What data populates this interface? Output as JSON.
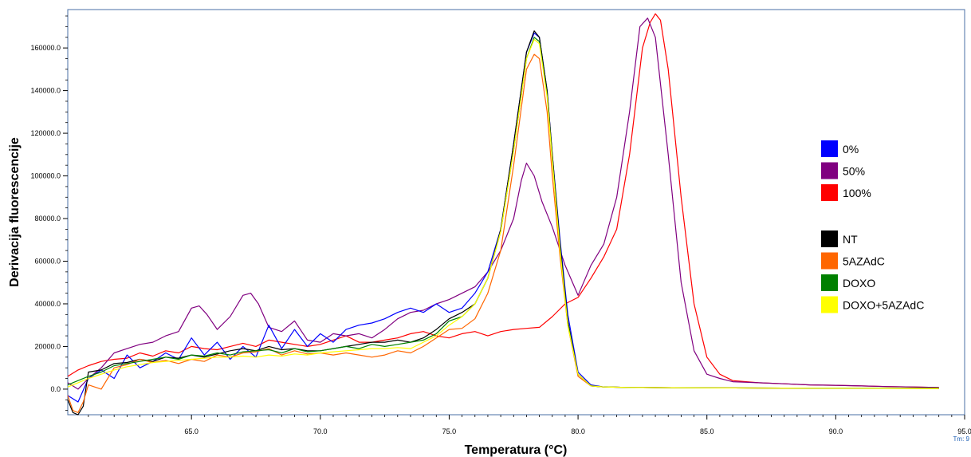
{
  "chart_data": {
    "type": "line",
    "title": "",
    "xlabel": "Temperatura (°C)",
    "ylabel": "Derivacija fluorescencije",
    "xlim": [
      60.2,
      95.0
    ],
    "ylim": [
      -12000,
      178000
    ],
    "x_ticks": [
      65.0,
      70.0,
      75.0,
      80.0,
      85.0,
      90.0,
      95.0
    ],
    "x_tick_labels": [
      "65.0",
      "70.0",
      "75.0",
      "80.0",
      "85.0",
      "90.0",
      "95.0"
    ],
    "y_ticks": [
      0,
      20000,
      40000,
      60000,
      80000,
      100000,
      120000,
      140000,
      160000
    ],
    "y_tick_labels": [
      "0.0",
      "20000.0",
      "40000.0",
      "60000.0",
      "80000.0",
      "100000.0",
      "120000.0",
      "140000.0",
      "160000.0"
    ],
    "corner_label": "Tm: 9",
    "grid": false,
    "legend_position": "right",
    "legend_groups": [
      [
        {
          "name": "0%",
          "color": "#0000ff"
        },
        {
          "name": "50%",
          "color": "#800080"
        },
        {
          "name": "100%",
          "color": "#ff0000"
        }
      ],
      [
        {
          "name": "NT",
          "color": "#000000"
        },
        {
          "name": "5AZAdC",
          "color": "#ff6600"
        },
        {
          "name": "DOXO",
          "color": "#008000"
        },
        {
          "name": "DOXO+5AZAdC",
          "color": "#ffff00"
        }
      ]
    ],
    "series": [
      {
        "name": "100%",
        "color": "#ff0000",
        "x": [
          60.2,
          60.6,
          61.0,
          61.5,
          62.0,
          62.5,
          63.0,
          63.5,
          64.0,
          64.5,
          65.0,
          65.5,
          66.0,
          66.5,
          67.0,
          67.5,
          68.0,
          68.5,
          69.0,
          69.5,
          70.0,
          70.5,
          71.0,
          71.5,
          72.0,
          72.5,
          73.0,
          73.5,
          74.0,
          74.5,
          75.0,
          75.5,
          76.0,
          76.5,
          77.0,
          77.5,
          78.0,
          78.5,
          79.0,
          79.5,
          80.0,
          80.5,
          81.0,
          81.5,
          82.0,
          82.5,
          82.8,
          83.0,
          83.2,
          83.5,
          84.0,
          84.5,
          85.0,
          85.5,
          86.0,
          87.0,
          88.0,
          89.0,
          90.0,
          91.0,
          92.0,
          93.0,
          94.0
        ],
        "y": [
          6000,
          9000,
          11000,
          13000,
          14000,
          14500,
          17000,
          15500,
          18000,
          17000,
          20000,
          19000,
          18500,
          20000,
          21500,
          20000,
          23000,
          22000,
          21000,
          20000,
          21000,
          23000,
          25000,
          22000,
          22000,
          23000,
          24000,
          26000,
          27000,
          25000,
          24000,
          26000,
          27000,
          25000,
          27000,
          28000,
          28500,
          29000,
          34000,
          40000,
          43000,
          52000,
          62000,
          75000,
          110000,
          160000,
          172000,
          176000,
          173000,
          150000,
          90000,
          40000,
          15000,
          7000,
          4000,
          3000,
          2500,
          2000,
          1800,
          1500,
          1200,
          1000,
          800
        ]
      },
      {
        "name": "50%",
        "color": "#800080",
        "x": [
          60.2,
          60.6,
          61.0,
          61.5,
          62.0,
          62.5,
          63.0,
          63.5,
          64.0,
          64.5,
          65.0,
          65.3,
          65.6,
          66.0,
          66.5,
          67.0,
          67.3,
          67.6,
          68.0,
          68.5,
          69.0,
          69.5,
          70.0,
          70.5,
          71.0,
          71.5,
          72.0,
          72.5,
          73.0,
          73.5,
          74.0,
          74.5,
          75.0,
          75.5,
          76.0,
          76.5,
          77.0,
          77.5,
          77.8,
          78.0,
          78.3,
          78.6,
          79.0,
          79.5,
          80.0,
          80.5,
          81.0,
          81.5,
          82.0,
          82.4,
          82.7,
          83.0,
          83.5,
          84.0,
          84.5,
          85.0,
          85.5,
          86.0,
          87.0,
          88.0,
          89.0,
          90.0,
          91.0,
          92.0,
          93.0,
          94.0
        ],
        "y": [
          3000,
          0,
          5000,
          10000,
          17000,
          19000,
          21000,
          22000,
          25000,
          27000,
          38000,
          39000,
          35000,
          28000,
          34000,
          44000,
          45000,
          40000,
          29000,
          27000,
          32000,
          23000,
          22000,
          26000,
          25000,
          26000,
          24000,
          28000,
          33000,
          36000,
          37000,
          40000,
          42000,
          45000,
          48000,
          55000,
          65000,
          80000,
          98000,
          106000,
          100000,
          88000,
          76000,
          58000,
          44000,
          58000,
          68000,
          90000,
          130000,
          170000,
          174000,
          165000,
          110000,
          50000,
          18000,
          7000,
          5000,
          3500,
          3000,
          2500,
          2000,
          1800,
          1500,
          1200,
          1000,
          800
        ]
      },
      {
        "name": "0%",
        "color": "#0000ff",
        "x": [
          60.2,
          60.6,
          61.0,
          61.5,
          62.0,
          62.5,
          63.0,
          63.5,
          64.0,
          64.5,
          65.0,
          65.5,
          66.0,
          66.5,
          67.0,
          67.5,
          68.0,
          68.5,
          69.0,
          69.5,
          70.0,
          70.5,
          71.0,
          71.5,
          72.0,
          72.5,
          73.0,
          73.5,
          74.0,
          74.5,
          75.0,
          75.5,
          76.0,
          76.5,
          77.0,
          77.5,
          78.0,
          78.3,
          78.5,
          78.8,
          79.0,
          79.3,
          79.6,
          80.0,
          80.5,
          81.0,
          82.0,
          83.0,
          85.0,
          88.0,
          91.0,
          94.0
        ],
        "y": [
          -3000,
          -6000,
          5000,
          9000,
          5000,
          16000,
          10000,
          13000,
          17000,
          14000,
          24000,
          16000,
          22000,
          14000,
          20000,
          15000,
          30000,
          19000,
          28000,
          20000,
          26000,
          22000,
          28000,
          30000,
          31000,
          33000,
          36000,
          38000,
          36000,
          40000,
          36000,
          38000,
          45000,
          55000,
          75000,
          115000,
          158000,
          167000,
          165000,
          140000,
          110000,
          70000,
          35000,
          8000,
          2000,
          1000,
          800,
          700,
          600,
          500,
          500,
          500
        ]
      },
      {
        "name": "NT",
        "color": "#000000",
        "x": [
          60.2,
          60.4,
          60.6,
          60.8,
          61.0,
          61.5,
          62.0,
          62.5,
          63.0,
          63.5,
          64.0,
          64.5,
          65.0,
          65.5,
          66.0,
          66.5,
          67.0,
          67.5,
          68.0,
          68.5,
          69.0,
          69.5,
          70.0,
          70.5,
          71.0,
          71.5,
          72.0,
          72.5,
          73.0,
          73.5,
          74.0,
          74.5,
          75.0,
          75.5,
          76.0,
          76.5,
          77.0,
          77.5,
          78.0,
          78.3,
          78.5,
          78.8,
          79.0,
          79.3,
          79.6,
          80.0,
          80.5,
          81.0,
          82.0,
          83.0,
          85.0,
          88.0,
          91.0,
          94.0
        ],
        "y": [
          -5000,
          -11000,
          -12000,
          -8000,
          8000,
          9000,
          12000,
          12500,
          14000,
          13000,
          15000,
          14500,
          16000,
          15000,
          16500,
          18000,
          19000,
          18000,
          20000,
          18500,
          19000,
          18000,
          18000,
          19000,
          20000,
          21000,
          22000,
          22000,
          23000,
          22000,
          24000,
          28000,
          33000,
          36000,
          40000,
          52000,
          75000,
          115000,
          158000,
          168000,
          165000,
          140000,
          110000,
          68000,
          32000,
          7000,
          1500,
          1000,
          800,
          700,
          600,
          500,
          500,
          500
        ]
      },
      {
        "name": "5AZAdC",
        "color": "#ff6600",
        "x": [
          60.2,
          60.4,
          60.6,
          60.8,
          61.0,
          61.5,
          62.0,
          62.5,
          63.0,
          63.5,
          64.0,
          64.5,
          65.0,
          65.5,
          66.0,
          66.5,
          67.0,
          67.5,
          68.0,
          68.5,
          69.0,
          69.5,
          70.0,
          70.5,
          71.0,
          71.5,
          72.0,
          72.5,
          73.0,
          73.5,
          74.0,
          74.5,
          75.0,
          75.5,
          76.0,
          76.5,
          77.0,
          77.5,
          78.0,
          78.3,
          78.5,
          78.8,
          79.0,
          79.3,
          79.6,
          80.0,
          80.5,
          81.0,
          82.0,
          83.0,
          85.0,
          88.0,
          91.0,
          94.0
        ],
        "y": [
          -3000,
          -10000,
          -11000,
          -6000,
          2000,
          0,
          10000,
          11500,
          14000,
          12500,
          13500,
          12000,
          14000,
          13000,
          16000,
          15000,
          17000,
          17500,
          19000,
          16000,
          18000,
          16500,
          17000,
          16000,
          17000,
          16000,
          15000,
          16000,
          18000,
          17000,
          20000,
          24000,
          28000,
          28500,
          33000,
          45000,
          65000,
          105000,
          150000,
          157000,
          155000,
          130000,
          100000,
          62000,
          30000,
          6000,
          1500,
          1000,
          800,
          700,
          600,
          500,
          400,
          300
        ]
      },
      {
        "name": "DOXO",
        "color": "#008000",
        "x": [
          60.2,
          60.6,
          61.0,
          61.5,
          62.0,
          62.5,
          63.0,
          63.5,
          64.0,
          64.5,
          65.0,
          65.5,
          66.0,
          66.5,
          67.0,
          67.5,
          68.0,
          68.5,
          69.0,
          69.5,
          70.0,
          70.5,
          71.0,
          71.5,
          72.0,
          72.5,
          73.0,
          73.5,
          74.0,
          74.5,
          75.0,
          75.5,
          76.0,
          76.5,
          77.0,
          77.5,
          78.0,
          78.3,
          78.5,
          78.8,
          79.0,
          79.3,
          79.6,
          80.0,
          80.5,
          81.0,
          82.0,
          83.0,
          85.0,
          88.0,
          91.0,
          94.0
        ],
        "y": [
          2000,
          4000,
          6000,
          8000,
          11000,
          12000,
          13000,
          14000,
          15000,
          14000,
          16000,
          15500,
          17000,
          16000,
          17500,
          18000,
          18500,
          17000,
          19000,
          17500,
          18000,
          19000,
          20000,
          19000,
          21000,
          20000,
          21000,
          22000,
          23000,
          26000,
          32000,
          34000,
          40000,
          52000,
          74000,
          112000,
          155000,
          165000,
          163000,
          138000,
          108000,
          66000,
          31000,
          7000,
          1500,
          1000,
          800,
          700,
          600,
          500,
          500,
          500
        ]
      },
      {
        "name": "DOXO+5AZAdC",
        "color": "#ffff00",
        "x": [
          60.2,
          60.6,
          61.0,
          61.5,
          62.0,
          62.5,
          63.0,
          63.5,
          64.0,
          64.5,
          65.0,
          65.5,
          66.0,
          66.5,
          67.0,
          67.5,
          68.0,
          68.5,
          69.0,
          69.5,
          70.0,
          70.5,
          71.0,
          71.5,
          72.0,
          72.5,
          73.0,
          73.5,
          74.0,
          74.5,
          75.0,
          75.5,
          76.0,
          76.5,
          77.0,
          77.5,
          78.0,
          78.3,
          78.5,
          78.8,
          79.0,
          79.3,
          79.6,
          80.0,
          80.5,
          81.0,
          82.0,
          83.0,
          85.0,
          88.0,
          91.0,
          94.0
        ],
        "y": [
          1000,
          3000,
          5000,
          7000,
          9000,
          10500,
          11500,
          12500,
          13000,
          13500,
          14000,
          14500,
          15000,
          15000,
          15500,
          15000,
          16000,
          15500,
          16500,
          16000,
          17000,
          17500,
          18000,
          18500,
          19000,
          19000,
          19500,
          19000,
          22000,
          25000,
          30000,
          34000,
          40000,
          52000,
          74000,
          112000,
          155000,
          164000,
          162000,
          137000,
          107000,
          65000,
          30000,
          7000,
          1500,
          1000,
          800,
          700,
          600,
          500,
          400,
          300
        ]
      }
    ]
  }
}
